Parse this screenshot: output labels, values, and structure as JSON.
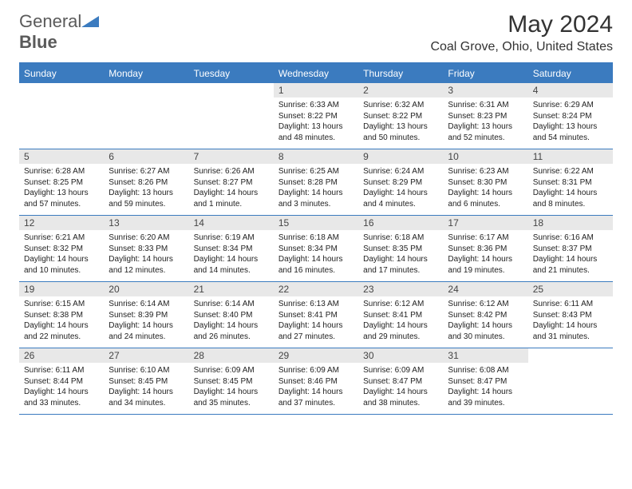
{
  "logo": {
    "part1": "General",
    "part2": "Blue"
  },
  "title": "May 2024",
  "location": "Coal Grove, Ohio, United States",
  "colors": {
    "accent": "#3b7bbf",
    "header_bg": "#3b7bbf",
    "header_text": "#ffffff",
    "daynum_bg": "#e8e8e8",
    "body_text": "#222222",
    "page_bg": "#ffffff"
  },
  "day_names": [
    "Sunday",
    "Monday",
    "Tuesday",
    "Wednesday",
    "Thursday",
    "Friday",
    "Saturday"
  ],
  "weeks": [
    [
      {
        "n": "",
        "sunrise": "",
        "sunset": "",
        "daylight": ""
      },
      {
        "n": "",
        "sunrise": "",
        "sunset": "",
        "daylight": ""
      },
      {
        "n": "",
        "sunrise": "",
        "sunset": "",
        "daylight": ""
      },
      {
        "n": "1",
        "sunrise": "6:33 AM",
        "sunset": "8:22 PM",
        "daylight": "13 hours and 48 minutes."
      },
      {
        "n": "2",
        "sunrise": "6:32 AM",
        "sunset": "8:22 PM",
        "daylight": "13 hours and 50 minutes."
      },
      {
        "n": "3",
        "sunrise": "6:31 AM",
        "sunset": "8:23 PM",
        "daylight": "13 hours and 52 minutes."
      },
      {
        "n": "4",
        "sunrise": "6:29 AM",
        "sunset": "8:24 PM",
        "daylight": "13 hours and 54 minutes."
      }
    ],
    [
      {
        "n": "5",
        "sunrise": "6:28 AM",
        "sunset": "8:25 PM",
        "daylight": "13 hours and 57 minutes."
      },
      {
        "n": "6",
        "sunrise": "6:27 AM",
        "sunset": "8:26 PM",
        "daylight": "13 hours and 59 minutes."
      },
      {
        "n": "7",
        "sunrise": "6:26 AM",
        "sunset": "8:27 PM",
        "daylight": "14 hours and 1 minute."
      },
      {
        "n": "8",
        "sunrise": "6:25 AM",
        "sunset": "8:28 PM",
        "daylight": "14 hours and 3 minutes."
      },
      {
        "n": "9",
        "sunrise": "6:24 AM",
        "sunset": "8:29 PM",
        "daylight": "14 hours and 4 minutes."
      },
      {
        "n": "10",
        "sunrise": "6:23 AM",
        "sunset": "8:30 PM",
        "daylight": "14 hours and 6 minutes."
      },
      {
        "n": "11",
        "sunrise": "6:22 AM",
        "sunset": "8:31 PM",
        "daylight": "14 hours and 8 minutes."
      }
    ],
    [
      {
        "n": "12",
        "sunrise": "6:21 AM",
        "sunset": "8:32 PM",
        "daylight": "14 hours and 10 minutes."
      },
      {
        "n": "13",
        "sunrise": "6:20 AM",
        "sunset": "8:33 PM",
        "daylight": "14 hours and 12 minutes."
      },
      {
        "n": "14",
        "sunrise": "6:19 AM",
        "sunset": "8:34 PM",
        "daylight": "14 hours and 14 minutes."
      },
      {
        "n": "15",
        "sunrise": "6:18 AM",
        "sunset": "8:34 PM",
        "daylight": "14 hours and 16 minutes."
      },
      {
        "n": "16",
        "sunrise": "6:18 AM",
        "sunset": "8:35 PM",
        "daylight": "14 hours and 17 minutes."
      },
      {
        "n": "17",
        "sunrise": "6:17 AM",
        "sunset": "8:36 PM",
        "daylight": "14 hours and 19 minutes."
      },
      {
        "n": "18",
        "sunrise": "6:16 AM",
        "sunset": "8:37 PM",
        "daylight": "14 hours and 21 minutes."
      }
    ],
    [
      {
        "n": "19",
        "sunrise": "6:15 AM",
        "sunset": "8:38 PM",
        "daylight": "14 hours and 22 minutes."
      },
      {
        "n": "20",
        "sunrise": "6:14 AM",
        "sunset": "8:39 PM",
        "daylight": "14 hours and 24 minutes."
      },
      {
        "n": "21",
        "sunrise": "6:14 AM",
        "sunset": "8:40 PM",
        "daylight": "14 hours and 26 minutes."
      },
      {
        "n": "22",
        "sunrise": "6:13 AM",
        "sunset": "8:41 PM",
        "daylight": "14 hours and 27 minutes."
      },
      {
        "n": "23",
        "sunrise": "6:12 AM",
        "sunset": "8:41 PM",
        "daylight": "14 hours and 29 minutes."
      },
      {
        "n": "24",
        "sunrise": "6:12 AM",
        "sunset": "8:42 PM",
        "daylight": "14 hours and 30 minutes."
      },
      {
        "n": "25",
        "sunrise": "6:11 AM",
        "sunset": "8:43 PM",
        "daylight": "14 hours and 31 minutes."
      }
    ],
    [
      {
        "n": "26",
        "sunrise": "6:11 AM",
        "sunset": "8:44 PM",
        "daylight": "14 hours and 33 minutes."
      },
      {
        "n": "27",
        "sunrise": "6:10 AM",
        "sunset": "8:45 PM",
        "daylight": "14 hours and 34 minutes."
      },
      {
        "n": "28",
        "sunrise": "6:09 AM",
        "sunset": "8:45 PM",
        "daylight": "14 hours and 35 minutes."
      },
      {
        "n": "29",
        "sunrise": "6:09 AM",
        "sunset": "8:46 PM",
        "daylight": "14 hours and 37 minutes."
      },
      {
        "n": "30",
        "sunrise": "6:09 AM",
        "sunset": "8:47 PM",
        "daylight": "14 hours and 38 minutes."
      },
      {
        "n": "31",
        "sunrise": "6:08 AM",
        "sunset": "8:47 PM",
        "daylight": "14 hours and 39 minutes."
      },
      {
        "n": "",
        "sunrise": "",
        "sunset": "",
        "daylight": ""
      }
    ]
  ],
  "labels": {
    "sunrise": "Sunrise:",
    "sunset": "Sunset:",
    "daylight": "Daylight:"
  }
}
